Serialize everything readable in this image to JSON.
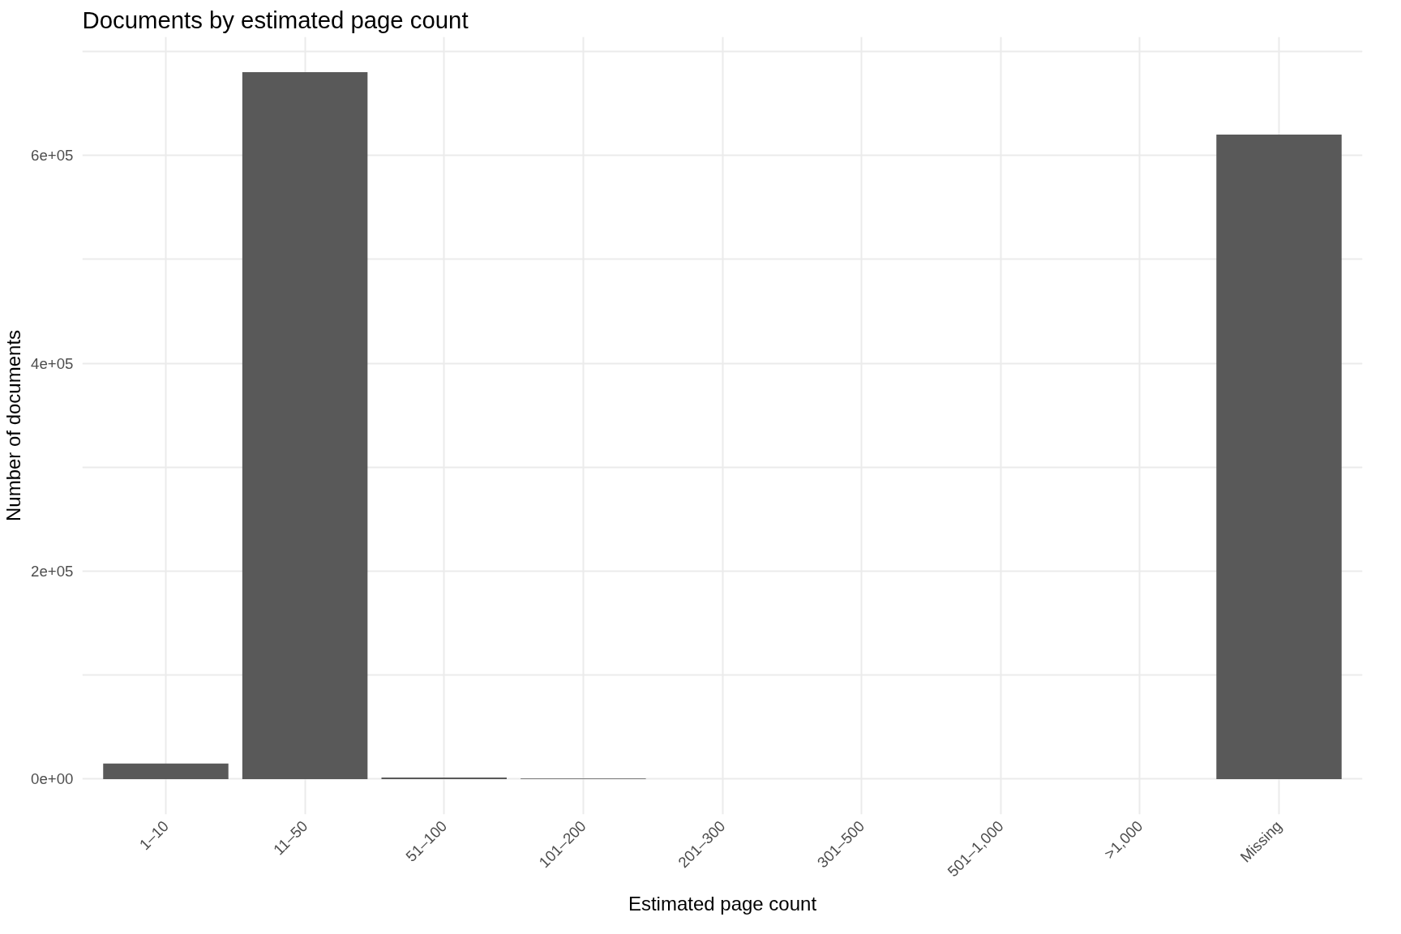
{
  "chart_data": {
    "type": "bar",
    "title": "Documents by estimated page count",
    "xlabel": "Estimated page count",
    "ylabel": "Number of documents",
    "categories": [
      "1–10",
      "11–50",
      "51–100",
      "101–200",
      "201–300",
      "301–500",
      "501–1,000",
      ">1,000",
      "Missing"
    ],
    "values": [
      15000,
      680000,
      1500,
      500,
      0,
      0,
      0,
      0,
      620000
    ],
    "color": "#595959",
    "ylim": [
      -34000,
      714000
    ],
    "yticks": [
      {
        "value": 0,
        "label": "0e+00"
      },
      {
        "value": 100000,
        "label": null
      },
      {
        "value": 200000,
        "label": "2e+05"
      },
      {
        "value": 300000,
        "label": null
      },
      {
        "value": 400000,
        "label": "4e+05"
      },
      {
        "value": 500000,
        "label": null
      },
      {
        "value": 600000,
        "label": "6e+05"
      },
      {
        "value": 700000,
        "label": null
      }
    ],
    "grid": true
  }
}
